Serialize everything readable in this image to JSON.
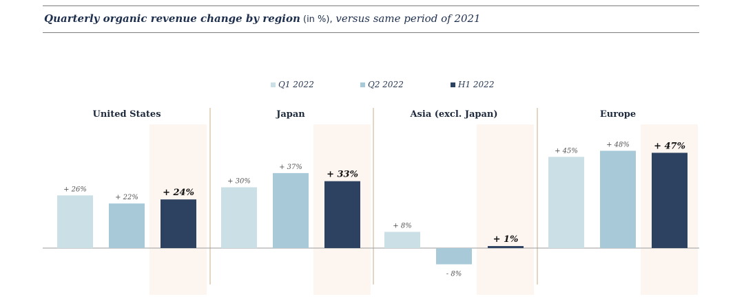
{
  "title": {
    "main": "Quarterly organic revenue change by region",
    "unit": " (in %),",
    "sub": " versus same period of 2021"
  },
  "colors": {
    "q1": "#cbe0e6",
    "q2": "#a8cad8",
    "h1": "#2d4160",
    "highlight": "#fdf5f0",
    "divider": "#c9ae84",
    "baseline": "#9a9a9a",
    "text": "#2a3a55"
  },
  "chart_data": {
    "type": "bar",
    "categories": [
      "United States",
      "Japan",
      "Asia (excl. Japan)",
      "Europe"
    ],
    "series": [
      {
        "name": "Q1 2022",
        "values": [
          26,
          30,
          8,
          45
        ],
        "labels": [
          "+ 26%",
          "+ 30%",
          "+ 8%",
          "+ 45%"
        ]
      },
      {
        "name": "Q2 2022",
        "values": [
          22,
          37,
          -8,
          48
        ],
        "labels": [
          "+ 22%",
          "+ 37%",
          "- 8%",
          "+ 48%"
        ]
      },
      {
        "name": "H1 2022",
        "values": [
          24,
          33,
          1,
          47
        ],
        "labels": [
          "+ 24%",
          "+ 33%",
          "+ 1%",
          "+ 47%"
        ]
      }
    ],
    "legend_position": "top-center",
    "grid": false
  }
}
